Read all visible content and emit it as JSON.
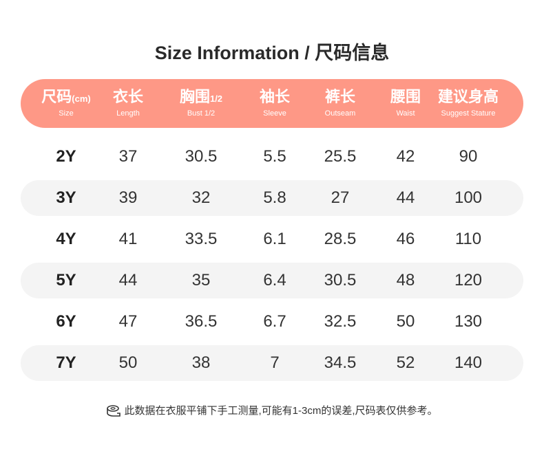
{
  "title": "Size Information / 尺码信息",
  "header": [
    {
      "zh": "尺码",
      "unit": "(cm)",
      "en": "Size"
    },
    {
      "zh": "衣长",
      "unit": "",
      "en": "Length"
    },
    {
      "zh": "胸围",
      "unit": "1/2",
      "en": "Bust 1/2"
    },
    {
      "zh": "袖长",
      "unit": "",
      "en": "Sleeve"
    },
    {
      "zh": "裤长",
      "unit": "",
      "en": "Outseam"
    },
    {
      "zh": "腰围",
      "unit": "",
      "en": "Waist"
    },
    {
      "zh": "建议身高",
      "unit": "",
      "en": "Suggest Stature"
    }
  ],
  "rows": [
    [
      "2Y",
      "37",
      "30.5",
      "5.5",
      "25.5",
      "42",
      "90"
    ],
    [
      "3Y",
      "39",
      "32",
      "5.8",
      "27",
      "44",
      "100"
    ],
    [
      "4Y",
      "41",
      "33.5",
      "6.1",
      "28.5",
      "46",
      "110"
    ],
    [
      "5Y",
      "44",
      "35",
      "6.4",
      "30.5",
      "48",
      "120"
    ],
    [
      "6Y",
      "47",
      "36.5",
      "6.7",
      "32.5",
      "50",
      "130"
    ],
    [
      "7Y",
      "50",
      "38",
      "7",
      "34.5",
      "52",
      "140"
    ]
  ],
  "note": "此数据在衣服平铺下手工测量,可能有1-3cm的误差,尺码表仅供参考。",
  "note_icon": "tape-measure-icon",
  "colors": {
    "header_bg": "#FE9886",
    "stripe_bg": "#F4F4F4"
  }
}
